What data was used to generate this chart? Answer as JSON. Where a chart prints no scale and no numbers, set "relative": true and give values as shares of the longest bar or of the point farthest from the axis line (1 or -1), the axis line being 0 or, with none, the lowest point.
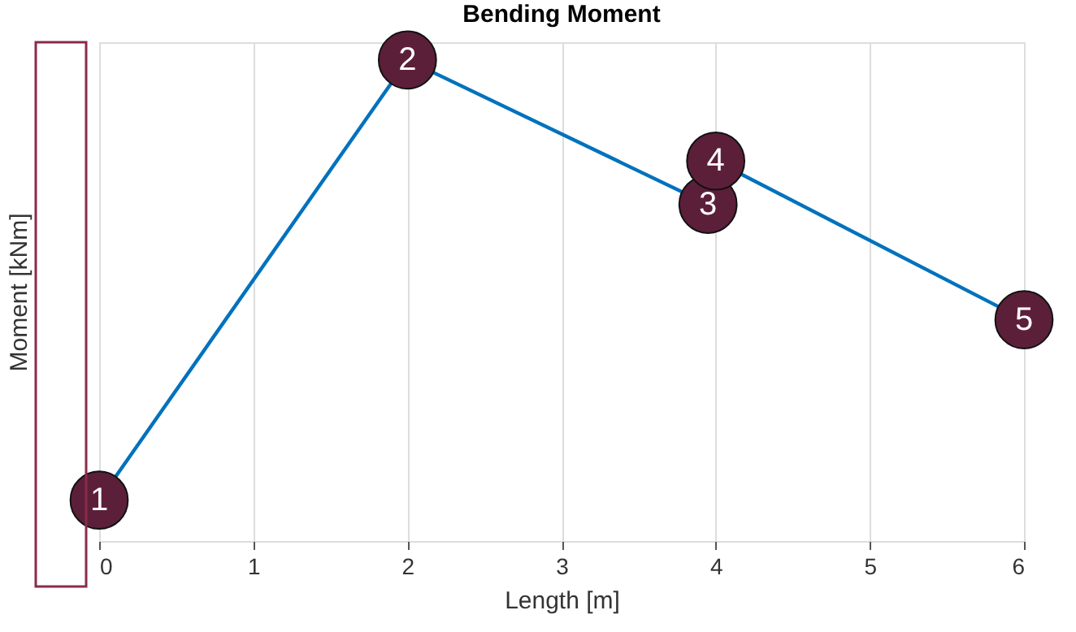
{
  "chart_data": {
    "type": "line",
    "title": "Bending Moment",
    "xlabel": "Length [m]",
    "ylabel": "Moment [kNm]",
    "x": [
      0,
      2,
      3.95,
      4,
      6
    ],
    "series": [
      {
        "color": "#0072bd",
        "values": [
          0.085,
          1,
          0.7,
          0.79,
          0.46
        ]
      }
    ],
    "relative": true,
    "xlim": [
      0,
      6
    ],
    "xticks": [
      0,
      1,
      2,
      3,
      4,
      5,
      6
    ],
    "grid": "x",
    "marker": "circle",
    "line_style": "solid",
    "annotations": [
      {
        "text": "1",
        "x": 0,
        "y": 0.085
      },
      {
        "text": "2",
        "x": 2,
        "y": 1
      },
      {
        "text": "3",
        "x": 3.95,
        "y": 0.7
      },
      {
        "text": "4",
        "x": 4,
        "y": 0.79
      },
      {
        "text": "5",
        "x": 6,
        "y": 0.46
      }
    ]
  }
}
